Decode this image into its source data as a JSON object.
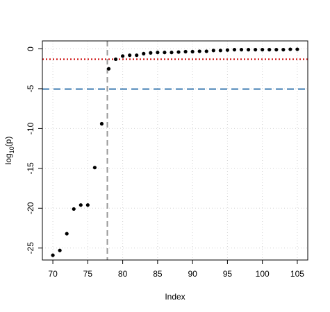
{
  "chart_data": {
    "type": "scatter",
    "title": "",
    "xlabel": "Index",
    "ylabel_base": "log",
    "ylabel_sub": "10",
    "ylabel_arg": "(p)",
    "xlim": [
      68.5,
      106.5
    ],
    "ylim": [
      -26.5,
      1.0
    ],
    "x_ticks": [
      70,
      75,
      80,
      85,
      90,
      95,
      100,
      105
    ],
    "y_ticks": [
      0,
      -5,
      -10,
      -15,
      -20,
      -25
    ],
    "grid": true,
    "points": {
      "x": [
        70,
        71,
        72,
        73,
        74,
        75,
        76,
        77,
        78,
        79,
        80,
        81,
        82,
        83,
        84,
        85,
        86,
        87,
        88,
        89,
        90,
        91,
        92,
        93,
        94,
        95,
        96,
        97,
        98,
        99,
        100,
        101,
        102,
        103,
        104,
        105
      ],
      "y": [
        -25.9,
        -25.3,
        -23.2,
        -20.1,
        -19.6,
        -19.6,
        -14.9,
        -9.4,
        -2.5,
        -1.3,
        -0.9,
        -0.8,
        -0.8,
        -0.6,
        -0.5,
        -0.45,
        -0.45,
        -0.45,
        -0.4,
        -0.35,
        -0.35,
        -0.3,
        -0.3,
        -0.2,
        -0.2,
        -0.15,
        -0.1,
        -0.1,
        -0.1,
        -0.1,
        -0.1,
        -0.1,
        -0.1,
        -0.1,
        -0.05,
        -0.05
      ],
      "color": "#000000"
    },
    "reference_lines": [
      {
        "orientation": "horizontal",
        "value": -1.3,
        "style": "dotted",
        "color": "#cc0000"
      },
      {
        "orientation": "horizontal",
        "value": -5.05,
        "style": "dashed",
        "color": "#3a78b0"
      },
      {
        "orientation": "vertical",
        "value": 77.8,
        "style": "dashed",
        "color": "#999999"
      }
    ]
  }
}
